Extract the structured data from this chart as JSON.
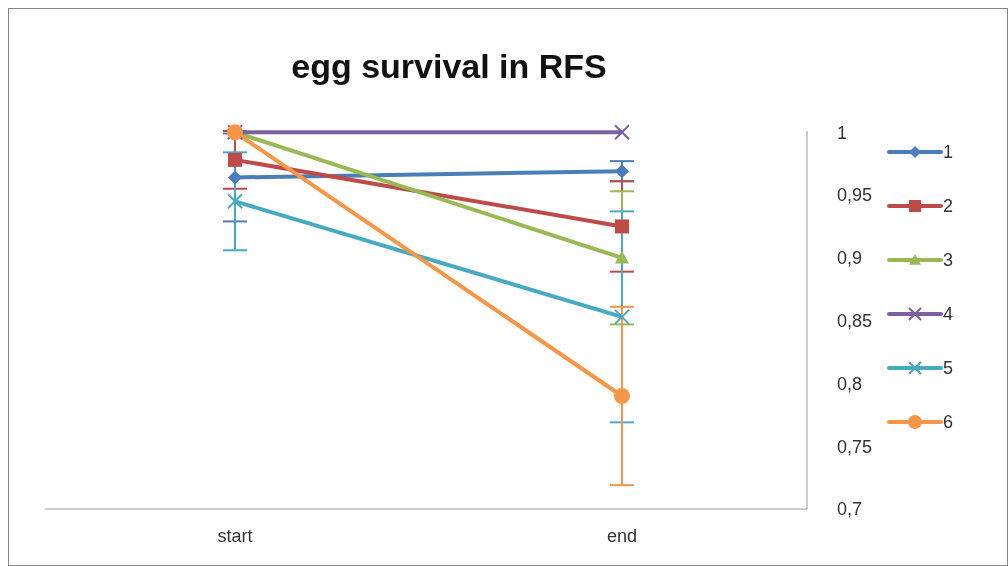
{
  "chart_data": {
    "type": "line",
    "title": "egg survival in RFS",
    "categories": [
      "start",
      "end"
    ],
    "series": [
      {
        "name": "1",
        "color": "#4a7ebb",
        "marker": "diamond",
        "values": [
          0.964,
          0.969
        ],
        "errors": [
          0.035,
          0.008
        ]
      },
      {
        "name": "2",
        "color": "#be4b48",
        "marker": "square",
        "values": [
          0.978,
          0.925
        ],
        "errors": [
          0.023,
          0.036
        ]
      },
      {
        "name": "3",
        "color": "#98b954",
        "marker": "triangle",
        "values": [
          1,
          0.9
        ],
        "errors": [
          null,
          0.053
        ]
      },
      {
        "name": "4",
        "color": "#7d60a0",
        "marker": "cross",
        "values": [
          1,
          1
        ]
      },
      {
        "name": "5",
        "color": "#46aac5",
        "marker": "cross",
        "values": [
          0.945,
          0.853
        ],
        "errors": [
          0.039,
          0.084
        ]
      },
      {
        "name": "6",
        "color": "#f79646",
        "marker": "circle",
        "values": [
          1,
          0.79
        ],
        "errors": [
          null,
          0.071
        ]
      }
    ],
    "ylim": [
      0.7,
      1
    ],
    "yticks": [
      {
        "value": 0.7,
        "label": "0,7"
      },
      {
        "value": 0.75,
        "label": "0,75"
      },
      {
        "value": 0.8,
        "label": "0,8"
      },
      {
        "value": 0.85,
        "label": "0,85"
      },
      {
        "value": 0.9,
        "label": "0,9"
      },
      {
        "value": 0.95,
        "label": "0,95"
      },
      {
        "value": 1,
        "label": "1"
      }
    ],
    "grid": false,
    "legend": "right",
    "line_style": "solid"
  }
}
